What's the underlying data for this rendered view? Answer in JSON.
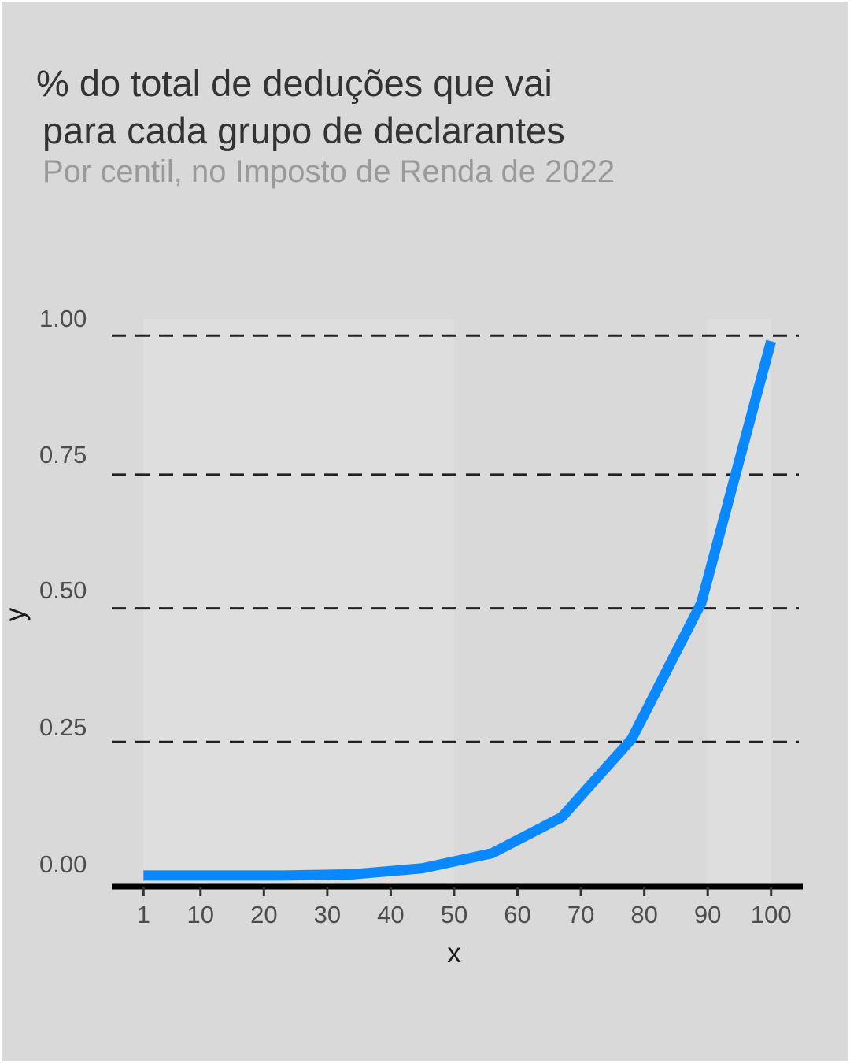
{
  "title_lines": [
    "% do total de deduções que vai",
    "para cada grupo de declarantes"
  ],
  "subtitle": "Por centil, no Imposto de Renda de 2022",
  "colors": {
    "background": "#d9d9d9",
    "band_light": "#dedede",
    "band_dark": "#d9d9d9",
    "line": "#0a88ff",
    "grid": "#000000",
    "axis": "#000000"
  },
  "chart_data": {
    "type": "line",
    "title": "",
    "xlabel": "x",
    "ylabel": "y",
    "xlim": [
      -4,
      105
    ],
    "ylim": [
      -0.02,
      1.0
    ],
    "x_ticks": [
      1,
      10,
      20,
      30,
      40,
      50,
      60,
      70,
      80,
      90,
      100
    ],
    "y_ticks": [
      0.0,
      0.25,
      0.5,
      0.75,
      1.0
    ],
    "y_tick_labels": [
      "0.00",
      "0.25",
      "0.50",
      "0.75",
      "1.00"
    ],
    "grid": "dashed horizontal",
    "legend": "none",
    "series": [
      {
        "x": [
          1,
          12,
          23,
          34,
          45,
          56,
          67,
          78,
          89,
          100
        ],
        "values": [
          0.0,
          0.0,
          0.0,
          0.002,
          0.013,
          0.04,
          0.105,
          0.245,
          0.49,
          0.96
        ]
      }
    ]
  }
}
